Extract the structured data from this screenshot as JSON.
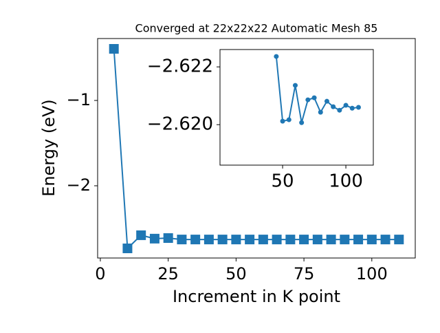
{
  "chart_data": [
    {
      "type": "line",
      "title": "Converged at 22x22x22 Automatic Mesh 85",
      "x_label": "Increment in K point",
      "y_label": "Energy (eV)",
      "x": [
        5,
        10,
        15,
        20,
        25,
        30,
        35,
        40,
        45,
        50,
        55,
        60,
        65,
        70,
        75,
        80,
        85,
        90,
        95,
        100,
        105,
        110
      ],
      "series": [
        {
          "color": "#1f77b4",
          "marker": "square",
          "values": [
            -0.395,
            -2.734,
            -2.58,
            -2.62,
            -2.613,
            -2.63,
            -2.63,
            -2.63,
            -2.63,
            -2.63,
            -2.63,
            -2.63,
            -2.63,
            -2.63,
            -2.63,
            -2.63,
            -2.63,
            -2.63,
            -2.63,
            -2.63,
            -2.63,
            -2.63
          ]
        }
      ],
      "xlim": [
        -1,
        116
      ],
      "ylim": [
        -2.847,
        -0.274
      ],
      "xticks": [
        0,
        25,
        50,
        75,
        100
      ],
      "yticks": [
        {
          "value": -2,
          "label": "−2"
        },
        {
          "value": -1,
          "label": "−1"
        }
      ]
    },
    {
      "type": "line",
      "x": [
        45,
        50,
        55,
        60,
        65,
        70,
        75,
        80,
        85,
        90,
        95,
        100,
        105,
        110
      ],
      "series": [
        {
          "color": "#1f77b4",
          "marker": "circle",
          "values": [
            -2.62236,
            -2.62012,
            -2.62017,
            -2.62136,
            -2.62007,
            -2.62086,
            -2.62093,
            -2.62043,
            -2.62081,
            -2.62062,
            -2.6205,
            -2.62067,
            -2.62057,
            -2.6206
          ]
        }
      ],
      "xlim": [
        0.5,
        121.7
      ],
      "ylim": [
        -2.6186,
        -2.6226
      ],
      "xticks": [
        50,
        100
      ],
      "yticks": [
        {
          "value": -2.622,
          "label": "−2.622"
        },
        {
          "value": -2.62,
          "label": "−2.620"
        }
      ]
    }
  ]
}
